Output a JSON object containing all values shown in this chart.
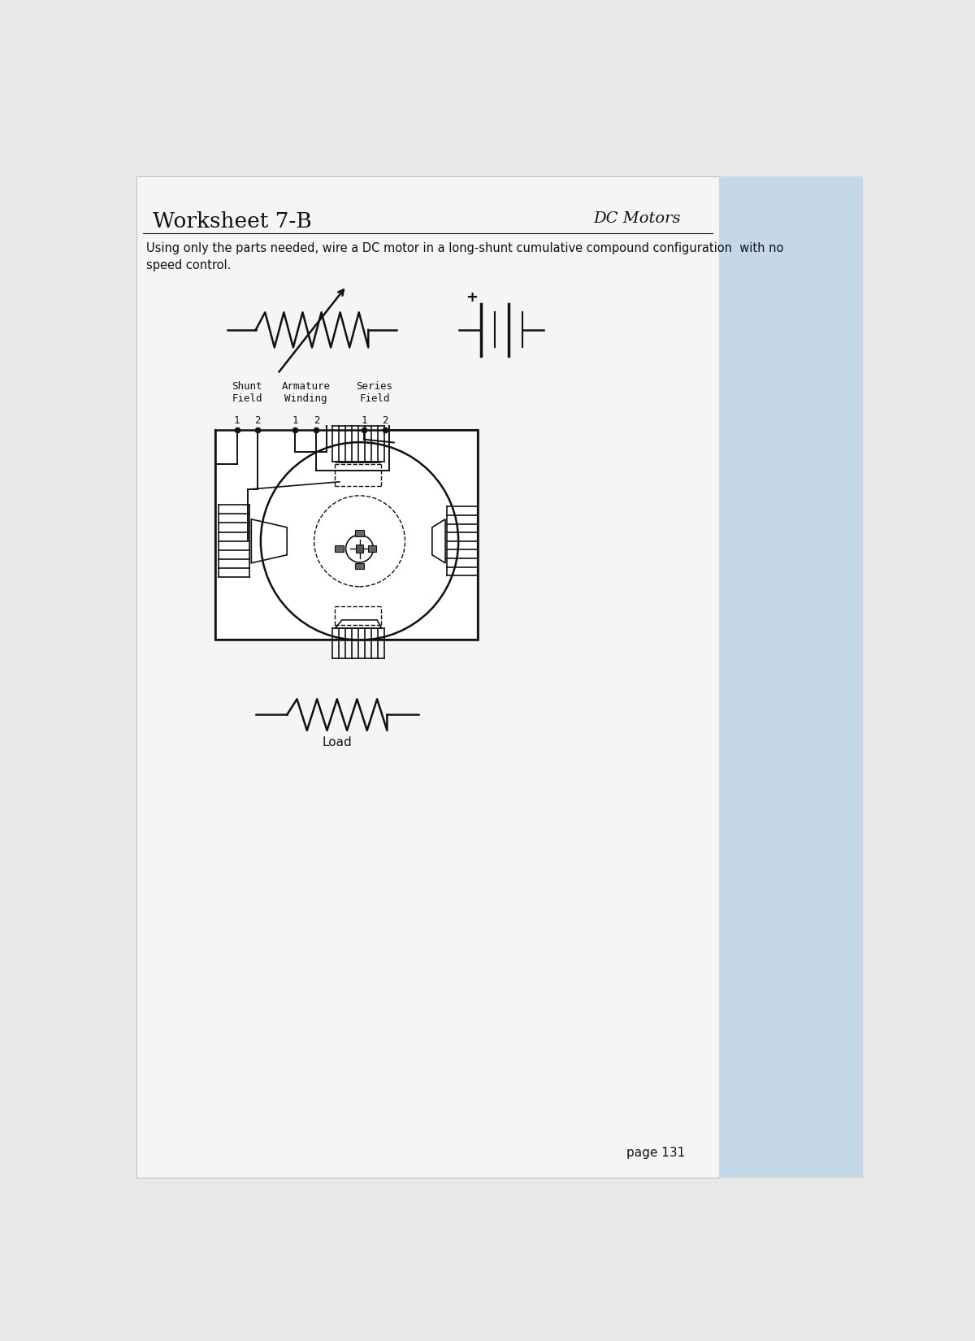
{
  "title": "Worksheet 7-B",
  "subtitle": "DC Motors",
  "instruction": "Using only the parts needed, wire a DC motor in a long-shunt cumulative compound configuration  with no\nspeed control.",
  "labels": {
    "shunt_field": "Shunt\nField",
    "armature_winding": "Armature\nWinding",
    "series_field": "Series\nField",
    "load": "Load",
    "page": "page 131"
  },
  "bg_color": "#e8e8e8",
  "paper_color": "#f5f5f5",
  "line_color": "#111111",
  "blue_strip_color": "#c5d8e8"
}
